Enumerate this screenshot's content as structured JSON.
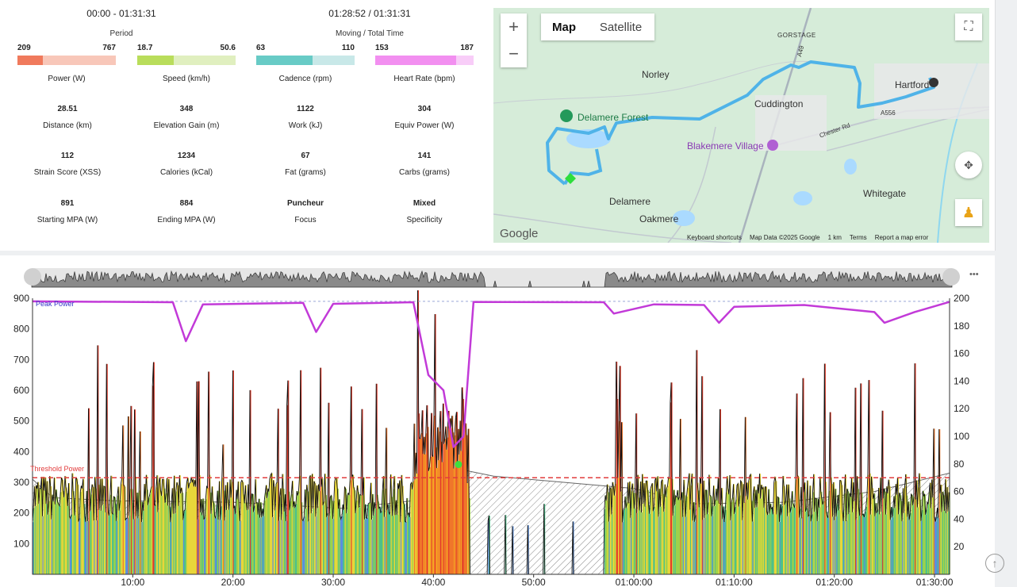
{
  "header": {
    "period_value": "00:00 - 01:31:31",
    "period_label": "Period",
    "moving_value": "01:28:52 / 01:31:31",
    "moving_label": "Moving / Total Time"
  },
  "bars": [
    {
      "min": "209",
      "max": "767",
      "label": "Power (W)",
      "fraction": 0.26,
      "fill": "#f07a5c",
      "track": "#f8c7b9"
    },
    {
      "min": "18.7",
      "max": "50.6",
      "label": "Speed (km/h)",
      "fraction": 0.37,
      "fill": "#b9dd5b",
      "track": "#e0efbf"
    },
    {
      "min": "63",
      "max": "110",
      "label": "Cadence (rpm)",
      "fraction": 0.57,
      "fill": "#68cbc6",
      "track": "#c8e8e8"
    },
    {
      "min": "153",
      "max": "187",
      "label": "Heart Rate (bpm)",
      "fraction": 0.82,
      "fill": "#f28ff0",
      "track": "#f8cdf8"
    }
  ],
  "metrics": [
    {
      "value": "28.51",
      "label": "Distance (km)"
    },
    {
      "value": "348",
      "label": "Elevation Gain (m)"
    },
    {
      "value": "1122",
      "label": "Work (kJ)"
    },
    {
      "value": "304",
      "label": "Equiv Power (W)"
    },
    {
      "value": "112",
      "label": "Strain Score (XSS)"
    },
    {
      "value": "1234",
      "label": "Calories (kCal)"
    },
    {
      "value": "67",
      "label": "Fat (grams)"
    },
    {
      "value": "141",
      "label": "Carbs (grams)"
    },
    {
      "value": "891",
      "label": "Starting MPA (W)"
    },
    {
      "value": "884",
      "label": "Ending MPA (W)"
    },
    {
      "value": "Puncheur",
      "label": "Focus"
    },
    {
      "value": "Mixed",
      "label": "Specificity"
    }
  ],
  "map": {
    "map_btn": "Map",
    "satellite_btn": "Satellite",
    "zoom_in": "+",
    "zoom_out": "−",
    "places": [
      "Norley",
      "Cuddington",
      "Hartford",
      "Delamere Forest",
      "Blakemere Village",
      "Delamere",
      "Oakmere",
      "Whitegate",
      "GORSTAGE",
      "Chester Rd",
      "A556",
      "A49"
    ],
    "logo": "Google",
    "footer": [
      "Keyboard shortcuts",
      "Map Data ©2025 Google",
      "1 km",
      "Terms",
      "Report a map error"
    ]
  },
  "chart_labels": {
    "peak_power": "Peak Power",
    "threshold": "Threshold Power",
    "menu": "•••"
  },
  "chart_data": {
    "type": "area",
    "y_left_ticks": [
      100,
      200,
      300,
      400,
      500,
      600,
      700,
      800,
      900
    ],
    "y_right_ticks": [
      20,
      40,
      60,
      80,
      100,
      120,
      140,
      160,
      180,
      200
    ],
    "x_ticks": [
      "10:00",
      "20:00",
      "30:00",
      "40:00",
      "50:00",
      "01:00:00",
      "01:10:00",
      "01:20:00",
      "01:30:00"
    ],
    "ylim_left": [
      0,
      900
    ],
    "ylim_right": [
      0,
      200
    ],
    "threshold_power": 315,
    "peak_power": [
      [
        0,
        890
      ],
      [
        14,
        887
      ],
      [
        15.3,
        760
      ],
      [
        17,
        880
      ],
      [
        27,
        885
      ],
      [
        28.3,
        790
      ],
      [
        30,
        882
      ],
      [
        38,
        887
      ],
      [
        39.5,
        650
      ],
      [
        41,
        600
      ],
      [
        42,
        415
      ],
      [
        43,
        450
      ],
      [
        44,
        888
      ],
      [
        57,
        887
      ],
      [
        58,
        850
      ],
      [
        62,
        880
      ],
      [
        67,
        878
      ],
      [
        68.5,
        820
      ],
      [
        70,
        872
      ],
      [
        77,
        878
      ],
      [
        84,
        855
      ],
      [
        85,
        820
      ],
      [
        88,
        855
      ],
      [
        91.5,
        888
      ]
    ],
    "color_series": "power zones (blue → green → yellow → orange → red)"
  },
  "scroll_top": "↑"
}
